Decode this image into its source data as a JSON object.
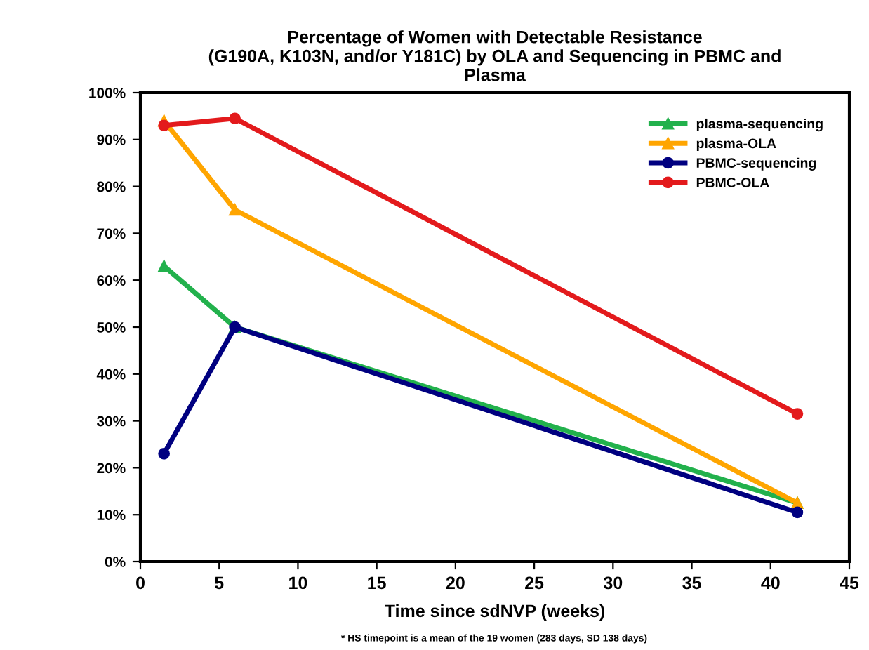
{
  "chart_data": {
    "type": "line",
    "title": "Percentage of Women with Detectable Resistance\n(G190A, K103N, and/or Y181C) by OLA and Sequencing in PBMC and\nPlasma",
    "xlabel": "Time since sdNVP (weeks)",
    "annotations": [
      "* HS timepoint is a mean of the 19 women (283 days, SD 138 days)"
    ],
    "x": [
      1.5,
      6,
      41.7
    ],
    "series": [
      {
        "name": "plasma-sequencing",
        "color": "#22b14c",
        "marker": "triangle",
        "values": [
          63,
          50,
          12.5
        ]
      },
      {
        "name": "plasma-OLA",
        "color": "#ffa500",
        "marker": "triangle",
        "values": [
          94,
          75,
          12.5
        ]
      },
      {
        "name": "PBMC-sequencing",
        "color": "#000080",
        "marker": "circle",
        "values": [
          23,
          50,
          10.5
        ]
      },
      {
        "name": "PBMC-OLA",
        "color": "#e31a1c",
        "marker": "circle",
        "values": [
          93,
          94.5,
          31.5
        ]
      }
    ],
    "xlim": [
      0,
      45
    ],
    "xticks": [
      0,
      5,
      10,
      15,
      20,
      25,
      30,
      35,
      40,
      45
    ],
    "ylim": [
      0,
      100
    ],
    "yticks": [
      {
        "value": 0,
        "label": "0%"
      },
      {
        "value": 10,
        "label": "10%"
      },
      {
        "value": 20,
        "label": "20%"
      },
      {
        "value": 30,
        "label": "30%"
      },
      {
        "value": 40,
        "label": "40%"
      },
      {
        "value": 50,
        "label": "50%"
      },
      {
        "value": 60,
        "label": "60%"
      },
      {
        "value": 70,
        "label": "70%"
      },
      {
        "value": 80,
        "label": "80%"
      },
      {
        "value": 90,
        "label": "90%"
      },
      {
        "value": 100,
        "label": "100%"
      }
    ],
    "grid": false,
    "legend": "top right",
    "line_style": "solid"
  }
}
